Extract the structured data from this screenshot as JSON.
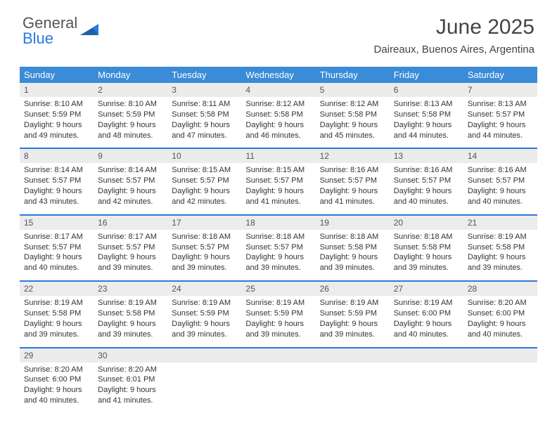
{
  "brand": {
    "part1": "General",
    "part2": "Blue"
  },
  "title": "June 2025",
  "location": "Daireaux, Buenos Aires, Argentina",
  "colors": {
    "header_bg": "#3a8bd8",
    "accent": "#2a7adf",
    "num_bg": "#ececec",
    "text": "#333333"
  },
  "dayNames": [
    "Sunday",
    "Monday",
    "Tuesday",
    "Wednesday",
    "Thursday",
    "Friday",
    "Saturday"
  ],
  "days": [
    {
      "n": "1",
      "sr": "8:10 AM",
      "ss": "5:59 PM",
      "dl": "9 hours and 49 minutes."
    },
    {
      "n": "2",
      "sr": "8:10 AM",
      "ss": "5:59 PM",
      "dl": "9 hours and 48 minutes."
    },
    {
      "n": "3",
      "sr": "8:11 AM",
      "ss": "5:58 PM",
      "dl": "9 hours and 47 minutes."
    },
    {
      "n": "4",
      "sr": "8:12 AM",
      "ss": "5:58 PM",
      "dl": "9 hours and 46 minutes."
    },
    {
      "n": "5",
      "sr": "8:12 AM",
      "ss": "5:58 PM",
      "dl": "9 hours and 45 minutes."
    },
    {
      "n": "6",
      "sr": "8:13 AM",
      "ss": "5:58 PM",
      "dl": "9 hours and 44 minutes."
    },
    {
      "n": "7",
      "sr": "8:13 AM",
      "ss": "5:57 PM",
      "dl": "9 hours and 44 minutes."
    },
    {
      "n": "8",
      "sr": "8:14 AM",
      "ss": "5:57 PM",
      "dl": "9 hours and 43 minutes."
    },
    {
      "n": "9",
      "sr": "8:14 AM",
      "ss": "5:57 PM",
      "dl": "9 hours and 42 minutes."
    },
    {
      "n": "10",
      "sr": "8:15 AM",
      "ss": "5:57 PM",
      "dl": "9 hours and 42 minutes."
    },
    {
      "n": "11",
      "sr": "8:15 AM",
      "ss": "5:57 PM",
      "dl": "9 hours and 41 minutes."
    },
    {
      "n": "12",
      "sr": "8:16 AM",
      "ss": "5:57 PM",
      "dl": "9 hours and 41 minutes."
    },
    {
      "n": "13",
      "sr": "8:16 AM",
      "ss": "5:57 PM",
      "dl": "9 hours and 40 minutes."
    },
    {
      "n": "14",
      "sr": "8:16 AM",
      "ss": "5:57 PM",
      "dl": "9 hours and 40 minutes."
    },
    {
      "n": "15",
      "sr": "8:17 AM",
      "ss": "5:57 PM",
      "dl": "9 hours and 40 minutes."
    },
    {
      "n": "16",
      "sr": "8:17 AM",
      "ss": "5:57 PM",
      "dl": "9 hours and 39 minutes."
    },
    {
      "n": "17",
      "sr": "8:18 AM",
      "ss": "5:57 PM",
      "dl": "9 hours and 39 minutes."
    },
    {
      "n": "18",
      "sr": "8:18 AM",
      "ss": "5:57 PM",
      "dl": "9 hours and 39 minutes."
    },
    {
      "n": "19",
      "sr": "8:18 AM",
      "ss": "5:58 PM",
      "dl": "9 hours and 39 minutes."
    },
    {
      "n": "20",
      "sr": "8:18 AM",
      "ss": "5:58 PM",
      "dl": "9 hours and 39 minutes."
    },
    {
      "n": "21",
      "sr": "8:19 AM",
      "ss": "5:58 PM",
      "dl": "9 hours and 39 minutes."
    },
    {
      "n": "22",
      "sr": "8:19 AM",
      "ss": "5:58 PM",
      "dl": "9 hours and 39 minutes."
    },
    {
      "n": "23",
      "sr": "8:19 AM",
      "ss": "5:58 PM",
      "dl": "9 hours and 39 minutes."
    },
    {
      "n": "24",
      "sr": "8:19 AM",
      "ss": "5:59 PM",
      "dl": "9 hours and 39 minutes."
    },
    {
      "n": "25",
      "sr": "8:19 AM",
      "ss": "5:59 PM",
      "dl": "9 hours and 39 minutes."
    },
    {
      "n": "26",
      "sr": "8:19 AM",
      "ss": "5:59 PM",
      "dl": "9 hours and 39 minutes."
    },
    {
      "n": "27",
      "sr": "8:19 AM",
      "ss": "6:00 PM",
      "dl": "9 hours and 40 minutes."
    },
    {
      "n": "28",
      "sr": "8:20 AM",
      "ss": "6:00 PM",
      "dl": "9 hours and 40 minutes."
    },
    {
      "n": "29",
      "sr": "8:20 AM",
      "ss": "6:00 PM",
      "dl": "9 hours and 40 minutes."
    },
    {
      "n": "30",
      "sr": "8:20 AM",
      "ss": "6:01 PM",
      "dl": "9 hours and 41 minutes."
    }
  ],
  "labels": {
    "sunrise": "Sunrise:",
    "sunset": "Sunset:",
    "daylight": "Daylight:"
  }
}
